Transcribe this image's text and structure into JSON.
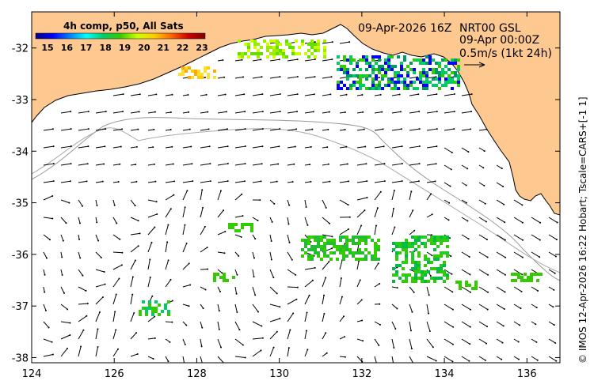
{
  "map": {
    "region": "South Australia GAB",
    "lon_range": [
      124,
      136.8
    ],
    "lat_range": [
      -38.1,
      -31.3
    ],
    "x_ticks": [
      "124",
      "126",
      "128",
      "130",
      "132",
      "134",
      "136"
    ],
    "x_tick_values": [
      124,
      126,
      128,
      130,
      132,
      134,
      136
    ],
    "y_ticks": [
      "-32",
      "-33",
      "-34",
      "-35",
      "-36",
      "-37",
      "-38"
    ],
    "y_tick_values": [
      -32,
      -33,
      -34,
      -35,
      -36,
      -37,
      -38
    ],
    "land_color": "#fec891",
    "ocean_color": "#ffffff",
    "isobath_color": "#999999"
  },
  "colorbar": {
    "title": "4h comp, p50, All Sats",
    "ticks": [
      "15",
      "16",
      "17",
      "18",
      "19",
      "20",
      "21",
      "22",
      "23"
    ],
    "min": 15,
    "max": 23,
    "colors": [
      "#000080",
      "#0000ff",
      "#0080ff",
      "#00ffff",
      "#00cc66",
      "#33cc00",
      "#ccff00",
      "#ffcc00",
      "#ff6600",
      "#cc0000",
      "#800000"
    ]
  },
  "header": {
    "sst_time": "09-Apr-2026 16Z",
    "current_product": "NRT00 GSL",
    "current_time": "09-Apr 00:00Z",
    "scale_label": "0.5m/s (1kt 24h)"
  },
  "credit": "© IMOS 12-Apr-2026 16:22 Hobart; Tscale=CARS+[-1 1]"
}
